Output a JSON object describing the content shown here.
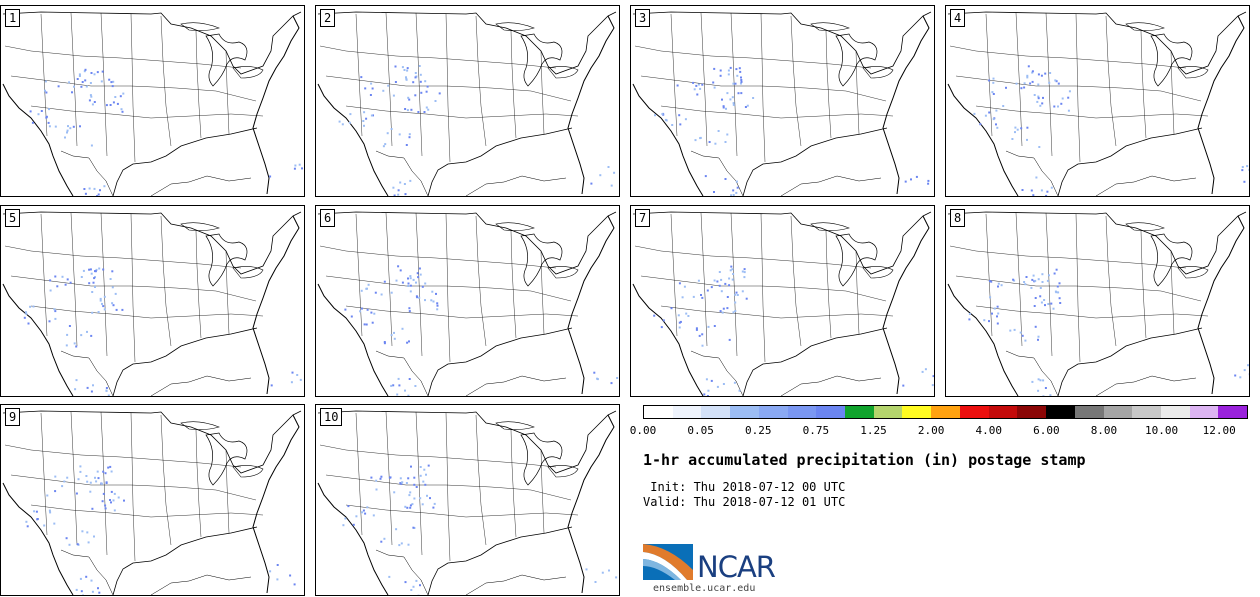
{
  "panels": [
    {
      "label": "1"
    },
    {
      "label": "2"
    },
    {
      "label": "3"
    },
    {
      "label": "4"
    },
    {
      "label": "5"
    },
    {
      "label": "6"
    },
    {
      "label": "7"
    },
    {
      "label": "8"
    },
    {
      "label": "9"
    },
    {
      "label": "10"
    }
  ],
  "colorbar": {
    "colors": [
      "#ffffff",
      "#eef3fc",
      "#d3e1f8",
      "#9cbdf4",
      "#8aa9f3",
      "#7a97f2",
      "#6b85f1",
      "#10a32c",
      "#b4d46c",
      "#fffb22",
      "#ffa210",
      "#ec0f0e",
      "#c40a0a",
      "#8b0606",
      "#000000",
      "#777777",
      "#a5a5a5",
      "#c8c8c8",
      "#ebebeb",
      "#dcb4f2",
      "#9a22dc"
    ],
    "tick_labels": [
      "0.00",
      "0.05",
      "0.25",
      "0.75",
      "1.25",
      "2.00",
      "4.00",
      "6.00",
      "8.00",
      "10.00",
      "12.00"
    ]
  },
  "title": "1-hr accumulated precipitation (in) postage stamp",
  "init_line": " Init: Thu 2018-07-12 00 UTC",
  "valid_line": "Valid: Thu 2018-07-12 01 UTC",
  "logo_text": "NCAR",
  "website": "ensemble.ucar.edu"
}
